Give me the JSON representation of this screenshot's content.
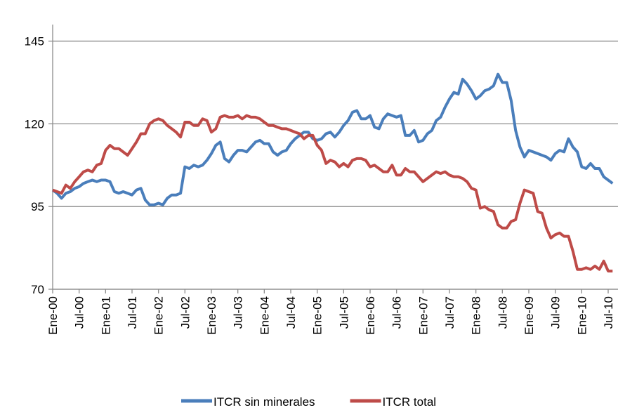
{
  "chart_data": {
    "type": "line",
    "categories": [
      "Ene-00",
      null,
      null,
      null,
      null,
      null,
      "Jul-00",
      null,
      null,
      null,
      null,
      null,
      "Ene-01",
      null,
      null,
      null,
      null,
      null,
      "Jul-01",
      null,
      null,
      null,
      null,
      null,
      "Ene-02",
      null,
      null,
      null,
      null,
      null,
      "Jul-02",
      null,
      null,
      null,
      null,
      null,
      "Ene-03",
      null,
      null,
      null,
      null,
      null,
      "Jul-03",
      null,
      null,
      null,
      null,
      null,
      "Ene-04",
      null,
      null,
      null,
      null,
      null,
      "Jul-04",
      null,
      null,
      null,
      null,
      null,
      "Ene-05",
      null,
      null,
      null,
      null,
      null,
      "Jul-05",
      null,
      null,
      null,
      null,
      null,
      "Ene-06",
      null,
      null,
      null,
      null,
      null,
      "Jul-06",
      null,
      null,
      null,
      null,
      null,
      "Ene-07",
      null,
      null,
      null,
      null,
      null,
      "Jul-07",
      null,
      null,
      null,
      null,
      null,
      "Ene-08",
      null,
      null,
      null,
      null,
      null,
      "Jul-08",
      null,
      null,
      null,
      null,
      null,
      "Ene-09",
      null,
      null,
      null,
      null,
      null,
      "Jul-09",
      null,
      null,
      null,
      null,
      null,
      "Ene-10",
      null,
      null,
      null,
      null,
      null,
      "Jul-10",
      null
    ],
    "series": [
      {
        "name": "ITCR sin minerales",
        "color": "#4a7ebb",
        "values": [
          100,
          99,
          97.5,
          99,
          99.5,
          100.5,
          101,
          102,
          102.5,
          103,
          102.5,
          103,
          103,
          102.5,
          99.5,
          99,
          99.5,
          99,
          98.5,
          100,
          100.5,
          97,
          95.5,
          95.5,
          96,
          95.5,
          97.5,
          98.5,
          98.5,
          99,
          107,
          106.5,
          107.5,
          107,
          107.5,
          109,
          111,
          113.5,
          114.5,
          109.5,
          108.5,
          110.5,
          112,
          112,
          111.5,
          113,
          114.5,
          115,
          114,
          114,
          111.5,
          110.5,
          111.5,
          112,
          114,
          115.5,
          116.5,
          117.5,
          117.5,
          115.5,
          115,
          115.5,
          117,
          117.5,
          116,
          117.5,
          119.5,
          121,
          123.5,
          124,
          121.5,
          121.5,
          122.5,
          119,
          118.5,
          121.5,
          123,
          122.5,
          122,
          122.5,
          116.5,
          116.5,
          118,
          114.5,
          115,
          117,
          118,
          121,
          122,
          125,
          127.5,
          129.5,
          129,
          133.5,
          132,
          130,
          127.5,
          128.5,
          130,
          130.5,
          131.5,
          135,
          132.5,
          132.5,
          127,
          118,
          113,
          110,
          112,
          111.5,
          111,
          110.5,
          110,
          109,
          111,
          112,
          111.5,
          115.5,
          113,
          111.5,
          107,
          106.5,
          108,
          106.5,
          106.5,
          104,
          103,
          102
        ]
      },
      {
        "name": "ITCR total",
        "color": "#be4b48",
        "values": [
          100,
          99.5,
          99,
          101.5,
          100.5,
          102.5,
          104,
          105.5,
          106,
          105.5,
          107.5,
          108,
          112,
          113.5,
          112.5,
          112.5,
          111.5,
          110.5,
          112.5,
          114.5,
          117,
          117,
          120,
          121,
          121.5,
          121,
          119.5,
          118.5,
          117.5,
          116,
          120.5,
          120.5,
          119.5,
          119.5,
          121.5,
          121,
          117.5,
          118.5,
          122,
          122.5,
          122,
          122,
          122.5,
          121.5,
          122.5,
          122,
          122,
          121.5,
          120.5,
          119.5,
          119.5,
          119,
          118.5,
          118.5,
          118,
          117.5,
          117,
          115.5,
          116.5,
          116.5,
          113.5,
          112,
          108,
          109,
          108.5,
          107,
          108,
          107,
          109,
          109.5,
          109.5,
          109,
          107,
          107.5,
          106.5,
          105.5,
          105.5,
          107.5,
          104.5,
          104.5,
          106.5,
          105.5,
          105.5,
          104,
          102.5,
          103.5,
          104.5,
          105.5,
          105,
          105.5,
          104.5,
          104,
          104,
          103.5,
          102.5,
          100.5,
          100,
          94.5,
          95,
          94,
          93.5,
          89.5,
          88.5,
          88.5,
          90.5,
          91,
          96,
          100,
          99.5,
          99,
          93.5,
          93,
          88.5,
          85.5,
          86.5,
          87,
          86,
          86,
          81.5,
          76,
          76,
          76.5,
          76,
          77,
          76,
          78.5,
          75.5,
          75.5
        ]
      }
    ],
    "ylim": [
      70,
      150
    ],
    "yticks": [
      70,
      95,
      120,
      145
    ],
    "grid": true,
    "legend": "bottom"
  }
}
